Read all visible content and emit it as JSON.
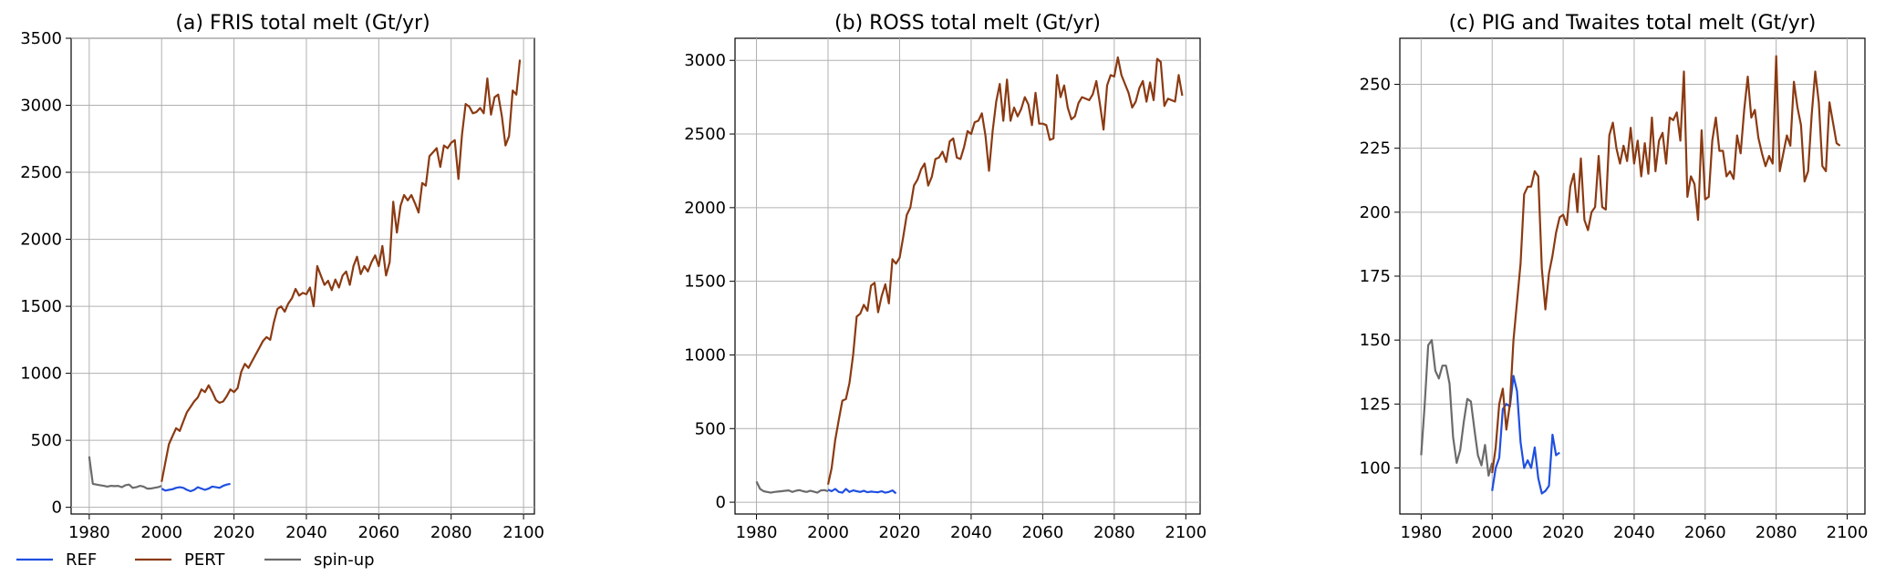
{
  "colors": {
    "REF": "#1f4fe0",
    "PERT": "#8b3a12",
    "spin-up": "#6b6b6b",
    "grid": "#b0b0b0"
  },
  "legend": {
    "placement": "bottom-left",
    "entries": [
      {
        "label": "REF",
        "key": "REF"
      },
      {
        "label": "PERT",
        "key": "PERT"
      },
      {
        "label": "spin-up",
        "key": "spin-up"
      }
    ]
  },
  "chart_data": [
    {
      "type": "line",
      "title": "(a) FRIS total melt (Gt/yr)",
      "xlabel": "",
      "ylabel": "",
      "xlim": [
        1975,
        2103
      ],
      "ylim": [
        -50,
        3500
      ],
      "xticks": [
        1980,
        2000,
        2020,
        2040,
        2060,
        2080,
        2100
      ],
      "yticks": [
        0,
        500,
        1000,
        1500,
        2000,
        2500,
        3000,
        3500
      ],
      "grid": true,
      "series": [
        {
          "key": "spin-up",
          "x0": 1980,
          "values": [
            380,
            175,
            170,
            165,
            160,
            155,
            160,
            158,
            160,
            150,
            165,
            170,
            145,
            150,
            160,
            155,
            140,
            140,
            145,
            150,
            160
          ]
        },
        {
          "key": "REF",
          "x0": 2000,
          "values": [
            140,
            125,
            130,
            135,
            145,
            150,
            145,
            130,
            120,
            130,
            150,
            140,
            130,
            140,
            155,
            150,
            145,
            160,
            170,
            175
          ]
        },
        {
          "key": "PERT",
          "x0": 2000,
          "values": [
            190,
            330,
            470,
            530,
            590,
            570,
            640,
            710,
            750,
            790,
            820,
            880,
            860,
            910,
            860,
            800,
            780,
            790,
            830,
            880,
            860,
            890,
            1010,
            1070,
            1040,
            1090,
            1140,
            1190,
            1240,
            1270,
            1250,
            1380,
            1480,
            1500,
            1460,
            1520,
            1560,
            1630,
            1580,
            1600,
            1590,
            1640,
            1500,
            1800,
            1730,
            1660,
            1690,
            1620,
            1700,
            1640,
            1730,
            1760,
            1660,
            1800,
            1870,
            1740,
            1800,
            1760,
            1830,
            1880,
            1800,
            1950,
            1730,
            1830,
            2280,
            2050,
            2250,
            2330,
            2290,
            2330,
            2270,
            2200,
            2420,
            2400,
            2620,
            2650,
            2680,
            2540,
            2700,
            2680,
            2720,
            2740,
            2450,
            2780,
            3010,
            2990,
            2940,
            2950,
            2980,
            2940,
            3200,
            2930,
            3060,
            3080,
            2920,
            2700,
            2770,
            3110,
            3080,
            3340
          ]
        }
      ]
    },
    {
      "type": "line",
      "title": "(b) ROSS total melt (Gt/yr)",
      "xlabel": "",
      "ylabel": "",
      "xlim": [
        1974,
        2104
      ],
      "ylim": [
        -80,
        3150
      ],
      "xticks": [
        1980,
        2000,
        2020,
        2040,
        2060,
        2080,
        2100
      ],
      "yticks": [
        0,
        500,
        1000,
        1500,
        2000,
        2500,
        3000
      ],
      "grid": true,
      "series": [
        {
          "key": "spin-up",
          "x0": 1980,
          "values": [
            140,
            90,
            75,
            70,
            65,
            70,
            72,
            75,
            78,
            80,
            70,
            78,
            82,
            75,
            70,
            78,
            72,
            65,
            80,
            82,
            75
          ]
        },
        {
          "key": "REF",
          "x0": 2000,
          "values": [
            85,
            75,
            90,
            70,
            65,
            90,
            70,
            80,
            75,
            70,
            78,
            68,
            72,
            70,
            68,
            75,
            65,
            70,
            80,
            60
          ]
        },
        {
          "key": "PERT",
          "x0": 2000,
          "values": [
            120,
            230,
            420,
            560,
            690,
            700,
            810,
            1000,
            1260,
            1280,
            1340,
            1300,
            1470,
            1490,
            1290,
            1400,
            1480,
            1350,
            1650,
            1620,
            1660,
            1800,
            1950,
            2000,
            2150,
            2190,
            2260,
            2300,
            2150,
            2210,
            2330,
            2340,
            2380,
            2310,
            2450,
            2470,
            2340,
            2330,
            2410,
            2520,
            2500,
            2580,
            2590,
            2640,
            2490,
            2250,
            2520,
            2720,
            2840,
            2590,
            2870,
            2590,
            2680,
            2620,
            2670,
            2750,
            2700,
            2560,
            2780,
            2570,
            2570,
            2560,
            2460,
            2470,
            2900,
            2750,
            2830,
            2680,
            2600,
            2620,
            2710,
            2750,
            2740,
            2730,
            2770,
            2860,
            2700,
            2530,
            2830,
            2900,
            2890,
            3020,
            2900,
            2840,
            2780,
            2680,
            2720,
            2810,
            2860,
            2720,
            2850,
            2730,
            3010,
            2990,
            2690,
            2740,
            2730,
            2720,
            2900,
            2760
          ]
        }
      ]
    },
    {
      "type": "line",
      "title": "(c) PIG and Twaites total melt (Gt/yr)",
      "xlabel": "",
      "ylabel": "",
      "xlim": [
        1974,
        2105
      ],
      "ylim": [
        82,
        268
      ],
      "xticks": [
        1980,
        2000,
        2020,
        2040,
        2060,
        2080,
        2100
      ],
      "yticks": [
        100,
        125,
        150,
        175,
        200,
        225,
        250
      ],
      "grid": true,
      "series": [
        {
          "key": "spin-up",
          "x0": 1980,
          "values": [
            105,
            125,
            148,
            150,
            138,
            135,
            140,
            140,
            133,
            112,
            102,
            107,
            118,
            127,
            126,
            115,
            105,
            101,
            109,
            97,
            102
          ]
        },
        {
          "key": "REF",
          "x0": 2000,
          "values": [
            91,
            100,
            104,
            123,
            125,
            124,
            136,
            130,
            110,
            100,
            103,
            100,
            108,
            96,
            90,
            91,
            93,
            113,
            105,
            106
          ]
        },
        {
          "key": "PERT",
          "x0": 2000,
          "values": [
            98,
            108,
            125,
            131,
            115,
            125,
            150,
            165,
            180,
            207,
            210,
            210,
            216,
            214,
            178,
            162,
            176,
            183,
            192,
            198,
            199,
            195,
            210,
            215,
            200,
            221,
            197,
            193,
            200,
            202,
            222,
            202,
            201,
            230,
            235,
            225,
            219,
            226,
            220,
            233,
            219,
            228,
            214,
            227,
            215,
            237,
            216,
            228,
            231,
            219,
            237,
            236,
            239,
            228,
            255,
            206,
            214,
            211,
            197,
            232,
            205,
            206,
            228,
            237,
            224,
            224,
            214,
            216,
            213,
            230,
            223,
            240,
            253,
            237,
            240,
            229,
            223,
            218,
            222,
            219,
            261,
            216,
            223,
            230,
            226,
            251,
            241,
            234,
            212,
            216,
            238,
            255,
            243,
            218,
            216,
            243,
            235,
            227,
            226
          ]
        }
      ]
    }
  ]
}
